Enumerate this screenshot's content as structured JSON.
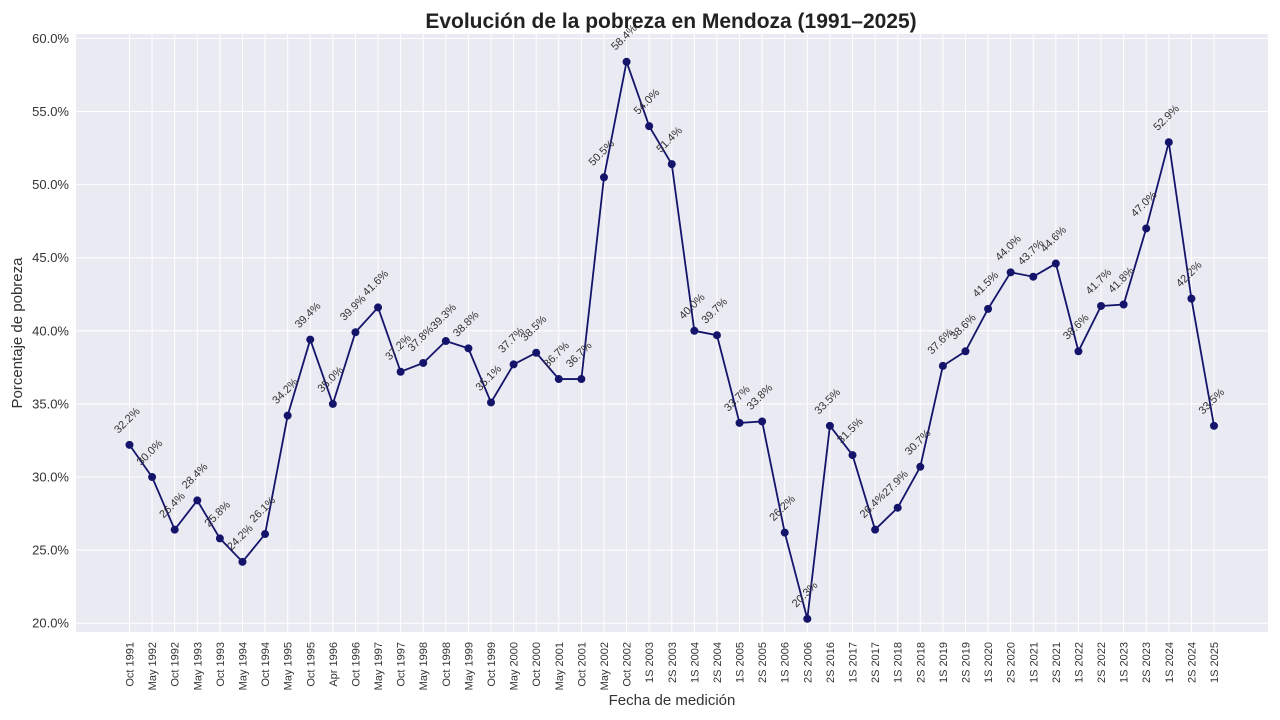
{
  "chart_data": {
    "type": "line",
    "title": "Evolución de la pobreza en Mendoza (1991–2025)",
    "xlabel": "Fecha de medición",
    "ylabel": "Porcentaje de pobreza",
    "ylim": [
      19.4,
      60.3
    ],
    "yticks": [
      "20.0%",
      "25.0%",
      "30.0%",
      "35.0%",
      "40.0%",
      "45.0%",
      "50.0%",
      "55.0%",
      "60.0%"
    ],
    "grid": true,
    "line_color": "#14146b",
    "plot_bg": "#eaeaf2",
    "categories": [
      "Oct 1991",
      "May 1992",
      "Oct 1992",
      "May 1993",
      "Oct 1993",
      "May 1994",
      "Oct 1994",
      "May 1995",
      "Oct 1995",
      "Apr 1996",
      "Oct 1996",
      "May 1997",
      "Oct 1997",
      "May 1998",
      "Oct 1998",
      "May 1999",
      "Oct 1999",
      "May 2000",
      "Oct 2000",
      "May 2001",
      "Oct 2001",
      "May 2002",
      "Oct 2002",
      "1S 2003",
      "2S 2003",
      "1S 2004",
      "2S 2004",
      "1S 2005",
      "2S 2005",
      "1S 2006",
      "2S 2006",
      "2S 2016",
      "1S 2017",
      "2S 2017",
      "1S 2018",
      "2S 2018",
      "1S 2019",
      "2S 2019",
      "1S 2020",
      "2S 2020",
      "1S 2021",
      "2S 2021",
      "1S 2022",
      "2S 2022",
      "1S 2023",
      "2S 2023",
      "1S 2024",
      "2S 2024",
      "1S 2025"
    ],
    "values": [
      32.2,
      30.0,
      26.4,
      28.4,
      25.8,
      24.2,
      26.1,
      34.2,
      39.4,
      35.0,
      39.9,
      41.6,
      37.2,
      37.8,
      39.3,
      38.8,
      35.1,
      37.7,
      38.5,
      36.7,
      36.7,
      50.5,
      58.4,
      54.0,
      51.4,
      40.0,
      39.7,
      33.7,
      33.8,
      26.2,
      20.3,
      33.5,
      31.5,
      26.4,
      27.9,
      30.7,
      37.6,
      38.6,
      41.5,
      44.0,
      43.7,
      44.6,
      38.6,
      41.7,
      41.8,
      47.0,
      52.9,
      42.2,
      33.5
    ],
    "labels": [
      "32.2%",
      "30.0%",
      "26.4%",
      "28.4%",
      "25.8%",
      "24.2%",
      "26.1%",
      "34.2%",
      "39.4%",
      "35.0%",
      "39.9%",
      "41.6%",
      "37.2%",
      "37.8%",
      "39.3%",
      "38.8%",
      "35.1%",
      "37.7%",
      "38.5%",
      "36.7%",
      "36.7%",
      "50.5%",
      "58.4%",
      "54.0%",
      "51.4%",
      "40.0%",
      "39.7%",
      "33.7%",
      "33.8%",
      "26.2%",
      "20.3%",
      "33.5%",
      "31.5%",
      "26.4%",
      "27.9%",
      "30.7%",
      "37.6%",
      "38.6%",
      "41.5%",
      "44.0%",
      "43.7%",
      "44.6%",
      "38.6%",
      "41.7%",
      "41.8%",
      "47.0%",
      "52.9%",
      "42.2%",
      "33.5%"
    ]
  }
}
